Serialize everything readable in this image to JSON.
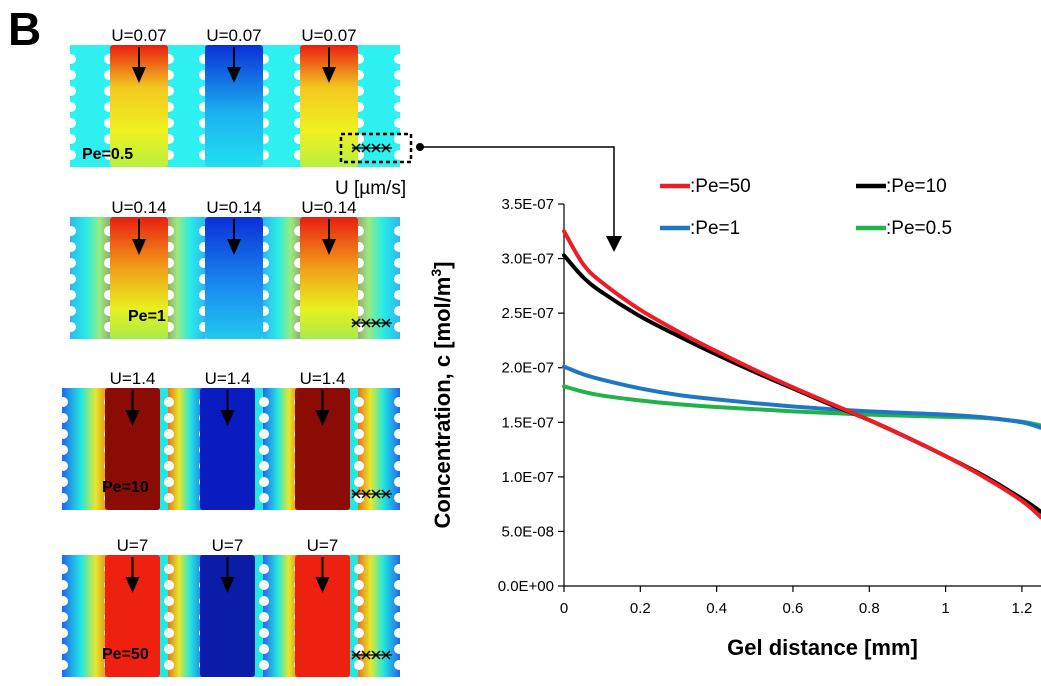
{
  "panel_letter": "B",
  "simulation": {
    "unit_label": "U [µm/s]",
    "rows": [
      {
        "pe": "Pe=0.5",
        "velocities": [
          "U=0.07",
          "U=0.07",
          "U=0.07"
        ]
      },
      {
        "pe": "Pe=1",
        "velocities": [
          "U=0.14",
          "U=0.14",
          "U=0.14"
        ]
      },
      {
        "pe": "Pe=10",
        "velocities": [
          "U=1.4",
          "U=1.4",
          "U=1.4"
        ]
      },
      {
        "pe": "Pe=50",
        "velocities": [
          "U=7",
          "U=7",
          "U=7"
        ]
      }
    ],
    "colors": {
      "bg_low": "#1ee8f0",
      "blue": "#0a2fd8",
      "red": "#e81e10",
      "dark_red": "#8a0c04",
      "yellow": "#f2f020",
      "green": "#8ee860"
    }
  },
  "chart_data": {
    "type": "line",
    "xlabel": "Gel distance [mm]",
    "ylabel": "Concentration, c [mol/m",
    "ylabel_sup": "3",
    "ylabel_end": "]",
    "xlim": [
      0,
      1.25
    ],
    "ylim": [
      0,
      3.5e-07
    ],
    "x_ticks": [
      "0",
      "0.2",
      "0.4",
      "0.6",
      "0.8",
      "1",
      "1.2"
    ],
    "x_tick_values": [
      0,
      0.2,
      0.4,
      0.6,
      0.8,
      1.0,
      1.2
    ],
    "y_ticks": [
      "0.0E+00",
      "5.0E-08",
      "1.0E-07",
      "1.5E-07",
      "2.0E-07",
      "2.5E-07",
      "3.0E-07",
      "3.5E-07"
    ],
    "y_tick_values": [
      0,
      5e-08,
      1e-07,
      1.5e-07,
      2e-07,
      2.5e-07,
      3e-07,
      3.5e-07
    ],
    "grid": false,
    "legend_position": "top-right",
    "series": [
      {
        "name": ":Pe=50",
        "color": "#ee1c24",
        "x": [
          0,
          0.05,
          0.1,
          0.2,
          0.3,
          0.4,
          0.5,
          0.6,
          0.7,
          0.8,
          0.9,
          1.0,
          1.1,
          1.2,
          1.25
        ],
        "y": [
          3.25e-07,
          2.95e-07,
          2.78e-07,
          2.53e-07,
          2.33e-07,
          2.15e-07,
          1.98e-07,
          1.82e-07,
          1.67e-07,
          1.52e-07,
          1.36e-07,
          1.19e-07,
          1e-07,
          7.8e-08,
          6.3e-08
        ]
      },
      {
        "name": ":Pe=10",
        "color": "#000000",
        "x": [
          0,
          0.05,
          0.1,
          0.2,
          0.3,
          0.4,
          0.5,
          0.6,
          0.7,
          0.8,
          0.9,
          1.0,
          1.1,
          1.2,
          1.25
        ],
        "y": [
          3.03e-07,
          2.83e-07,
          2.69e-07,
          2.47e-07,
          2.29e-07,
          2.12e-07,
          1.96e-07,
          1.81e-07,
          1.66e-07,
          1.52e-07,
          1.36e-07,
          1.19e-07,
          1.01e-07,
          8e-08,
          6.8e-08
        ]
      },
      {
        "name": ":Pe=1",
        "color": "#1f77c4",
        "x": [
          0,
          0.05,
          0.1,
          0.2,
          0.3,
          0.4,
          0.5,
          0.6,
          0.7,
          0.8,
          0.9,
          1.0,
          1.1,
          1.2,
          1.25
        ],
        "y": [
          2.01e-07,
          1.94e-07,
          1.89e-07,
          1.81e-07,
          1.75e-07,
          1.71e-07,
          1.675e-07,
          1.645e-07,
          1.62e-07,
          1.6e-07,
          1.585e-07,
          1.57e-07,
          1.545e-07,
          1.5e-07,
          1.45e-07
        ]
      },
      {
        "name": ":Pe=0.5",
        "color": "#22b14c",
        "x": [
          0,
          0.05,
          0.1,
          0.2,
          0.3,
          0.4,
          0.5,
          0.6,
          0.7,
          0.8,
          0.9,
          1.0,
          1.1,
          1.2,
          1.25
        ],
        "y": [
          1.83e-07,
          1.78e-07,
          1.745e-07,
          1.7e-07,
          1.665e-07,
          1.64e-07,
          1.62e-07,
          1.6e-07,
          1.585e-07,
          1.57e-07,
          1.56e-07,
          1.55e-07,
          1.54e-07,
          1.505e-07,
          1.47e-07
        ]
      }
    ]
  }
}
